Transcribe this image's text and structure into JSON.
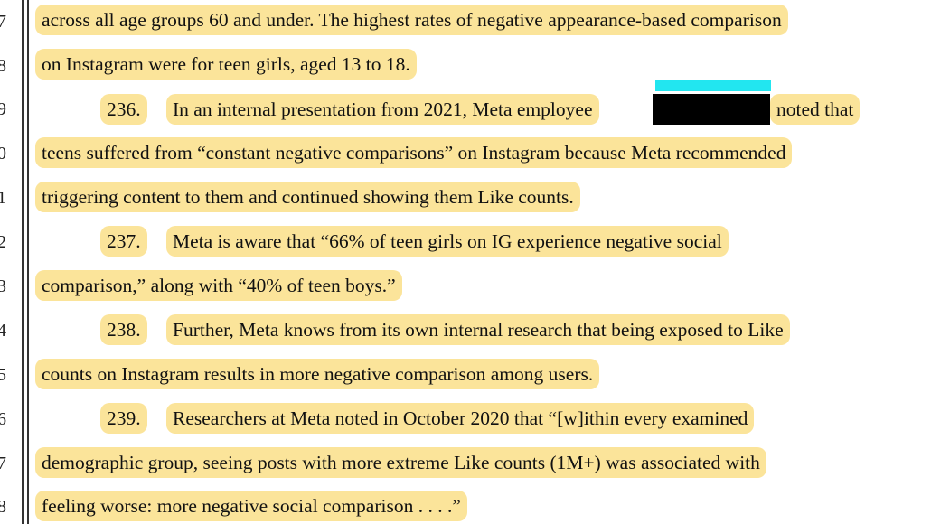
{
  "line_numbers": [
    "7",
    "8",
    "9",
    "0",
    "1",
    "2",
    "3",
    "4",
    "5",
    "6",
    "7",
    "8"
  ],
  "lines": [
    "across all age groups 60 and under. The highest rates of negative appearance-based comparison",
    "on Instagram were for teen girls, aged 13 to 18.",
    "236.",
    "In an internal presentation from 2021, Meta employee",
    "noted that",
    "teens suffered from “constant negative comparisons” on Instagram because Meta recommended",
    "triggering content to them and continued showing them Like counts.",
    "237.",
    "Meta is aware that “66% of teen girls on IG experience negative social",
    "comparison,” along with “40% of teen boys.”",
    "238.",
    "Further, Meta knows from its own internal research that being exposed to Like",
    "counts on Instagram results in more negative comparison among users.",
    "239.",
    "Researchers at Meta noted in October 2020 that “[w]ithin every examined",
    "demographic group, seeing posts with more extreme Like counts (1M+) was associated with",
    "feeling worse: more negative social comparison . . . .”"
  ],
  "highlight_color": "#fbe49a",
  "redaction_color": "#000000",
  "redaction_tag_color": "#22e6f0"
}
